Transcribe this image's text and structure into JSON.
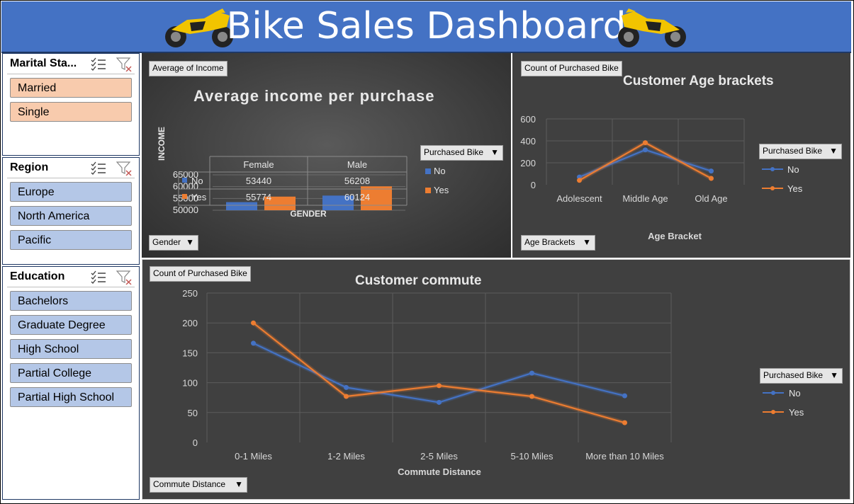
{
  "header": {
    "title": "Bike Sales Dashboard"
  },
  "slicers": {
    "marital": {
      "title": "Marital Sta...",
      "items": [
        "Married",
        "Single"
      ]
    },
    "region": {
      "title": "Region",
      "items": [
        "Europe",
        "North America",
        "Pacific"
      ]
    },
    "education": {
      "title": "Education",
      "items": [
        "Bachelors",
        "Graduate Degree",
        "High School",
        "Partial College",
        "Partial High School"
      ]
    }
  },
  "colors": {
    "no": "#4472c4",
    "yes": "#ed7d31",
    "header": "#4472c4",
    "panel": "#404040"
  },
  "chart_income": {
    "value_button": "Average of Income",
    "axis_button": "Gender",
    "legend_button": "Purchased Bike",
    "title": "Average income per purchase",
    "ylabel": "INCOME",
    "xlabel": "GENDER",
    "series_labels": [
      "No",
      "Yes"
    ],
    "table_headers": [
      "Female",
      "Male"
    ],
    "table_rows": [
      [
        "53440",
        "56208"
      ],
      [
        "55774",
        "60124"
      ]
    ]
  },
  "chart_age": {
    "value_button": "Count of Purchased Bike",
    "axis_button": "Age Brackets",
    "legend_button": "Purchased Bike",
    "title": "Customer Age brackets",
    "xlabel": "Age Bracket",
    "series_labels": [
      "No",
      "Yes"
    ]
  },
  "chart_commute": {
    "value_button": "Count of Purchased Bike",
    "axis_button": "Commute Distance",
    "legend_button": "Purchased Bike",
    "title": "Customer commute",
    "xlabel": "Commute Distance",
    "series_labels": [
      "No",
      "Yes"
    ]
  },
  "chart_data": [
    {
      "type": "bar",
      "title": "Average income per purchase",
      "xlabel": "GENDER",
      "ylabel": "INCOME",
      "categories": [
        "Female",
        "Male"
      ],
      "series": [
        {
          "name": "No",
          "values": [
            53440,
            56208
          ]
        },
        {
          "name": "Yes",
          "values": [
            55774,
            60124
          ]
        }
      ],
      "ylim": [
        50000,
        65000
      ],
      "yticks": [
        "50000",
        "55000",
        "60000",
        "65000"
      ],
      "legend": "right",
      "grid": true
    },
    {
      "type": "line",
      "title": "Customer Age brackets",
      "xlabel": "Age Bracket",
      "ylabel": "",
      "categories": [
        "Adolescent",
        "Middle Age",
        "Old Age"
      ],
      "series": [
        {
          "name": "No",
          "values": [
            70,
            318,
            125
          ]
        },
        {
          "name": "Yes",
          "values": [
            40,
            383,
            58
          ]
        }
      ],
      "ylim": [
        0,
        600
      ],
      "yticks": [
        "0",
        "200",
        "400",
        "600"
      ],
      "legend": "right",
      "grid": true
    },
    {
      "type": "line",
      "title": "Customer commute",
      "xlabel": "Commute Distance",
      "ylabel": "",
      "categories": [
        "0-1 Miles",
        "1-2 Miles",
        "2-5 Miles",
        "5-10 Miles",
        "More than 10 Miles"
      ],
      "series": [
        {
          "name": "No",
          "values": [
            166,
            92,
            67,
            116,
            78
          ]
        },
        {
          "name": "Yes",
          "values": [
            200,
            77,
            95,
            77,
            33
          ]
        }
      ],
      "ylim": [
        0,
        250
      ],
      "yticks": [
        "0",
        "50",
        "100",
        "150",
        "200",
        "250"
      ],
      "legend": "right",
      "grid": true
    }
  ]
}
